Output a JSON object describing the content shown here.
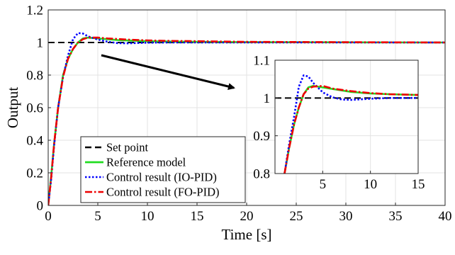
{
  "chart_data": [
    {
      "id": "main",
      "type": "line",
      "xlabel": "Time [s]",
      "ylabel": "Output",
      "xlim": [
        0,
        40
      ],
      "ylim": [
        0,
        1.2
      ],
      "xticks": [
        "0",
        "5",
        "10",
        "15",
        "20",
        "25",
        "30",
        "35",
        "40"
      ],
      "yticks": [
        "0",
        "0.2",
        "0.4",
        "0.6",
        "0.8",
        "1",
        "1.2"
      ],
      "grid": true,
      "legend_position": "bottom-left",
      "series": [
        {
          "name": "Set point",
          "color": "#000000",
          "style": "dashed",
          "points": [
            [
              0,
              1.0
            ],
            [
              40,
              1.0
            ]
          ]
        },
        {
          "name": "Reference model",
          "color": "#22dd22",
          "style": "solid",
          "points": [
            [
              0,
              0
            ],
            [
              0.3,
              0.18
            ],
            [
              0.6,
              0.38
            ],
            [
              1.0,
              0.6
            ],
            [
              1.5,
              0.8
            ],
            [
              2.0,
              0.9
            ],
            [
              2.5,
              0.96
            ],
            [
              3.0,
              1.0
            ],
            [
              3.5,
              1.025
            ],
            [
              4.0,
              1.03
            ],
            [
              5.0,
              1.025
            ],
            [
              7.0,
              1.015
            ],
            [
              10.0,
              1.008
            ],
            [
              15.0,
              1.004
            ],
            [
              20.0,
              1.002
            ],
            [
              40.0,
              1.0
            ]
          ]
        },
        {
          "name": "Control result (IO-PID)",
          "color": "#0000ff",
          "style": "dotted",
          "points": [
            [
              0,
              0
            ],
            [
              0.3,
              0.16
            ],
            [
              0.6,
              0.37
            ],
            [
              1.0,
              0.6
            ],
            [
              1.5,
              0.79
            ],
            [
              2.0,
              0.92
            ],
            [
              2.5,
              1.02
            ],
            [
              3.0,
              1.058
            ],
            [
              3.5,
              1.055
            ],
            [
              4.0,
              1.038
            ],
            [
              5.0,
              1.018
            ],
            [
              6.0,
              1.005
            ],
            [
              7.0,
              0.996
            ],
            [
              8.0,
              0.995
            ],
            [
              9.0,
              0.997
            ],
            [
              10.0,
              0.999
            ],
            [
              12.0,
              1.0
            ],
            [
              15.0,
              1.0
            ],
            [
              40.0,
              1.0
            ]
          ]
        },
        {
          "name": "Control result (FO-PID)",
          "color": "#ee0000",
          "style": "dashdot",
          "points": [
            [
              0,
              0
            ],
            [
              0.3,
              0.17
            ],
            [
              0.6,
              0.38
            ],
            [
              1.0,
              0.6
            ],
            [
              1.5,
              0.79
            ],
            [
              2.0,
              0.9
            ],
            [
              2.5,
              0.96
            ],
            [
              3.0,
              1.0
            ],
            [
              3.5,
              1.02
            ],
            [
              4.0,
              1.03
            ],
            [
              5.0,
              1.03
            ],
            [
              6.0,
              1.025
            ],
            [
              8.0,
              1.018
            ],
            [
              10.0,
              1.013
            ],
            [
              12.0,
              1.01
            ],
            [
              15.0,
              1.008
            ],
            [
              20.0,
              1.004
            ],
            [
              40.0,
              1.0
            ]
          ]
        }
      ]
    },
    {
      "id": "inset",
      "type": "line",
      "xlim": [
        0,
        15
      ],
      "ylim": [
        0.8,
        1.1
      ],
      "xticks": [
        "5",
        "10",
        "15"
      ],
      "yticks": [
        "0.8",
        "0.9",
        "1",
        "1.1"
      ],
      "grid": true,
      "series": [
        {
          "name": "Set point",
          "color": "#000000",
          "style": "dashed",
          "points": [
            [
              0,
              1.0
            ],
            [
              15,
              1.0
            ]
          ]
        },
        {
          "name": "Reference model",
          "color": "#22dd22",
          "style": "solid",
          "points": [
            [
              1.0,
              0.8
            ],
            [
              1.5,
              0.87
            ],
            [
              2.0,
              0.93
            ],
            [
              2.5,
              0.975
            ],
            [
              3.0,
              1.01
            ],
            [
              3.5,
              1.028
            ],
            [
              4.0,
              1.032
            ],
            [
              5.0,
              1.028
            ],
            [
              6.0,
              1.024
            ],
            [
              8.0,
              1.016
            ],
            [
              10.0,
              1.012
            ],
            [
              12.0,
              1.01
            ],
            [
              15.0,
              1.008
            ]
          ]
        },
        {
          "name": "Control result (IO-PID)",
          "color": "#0000ff",
          "style": "dotted",
          "points": [
            [
              1.0,
              0.8
            ],
            [
              1.5,
              0.88
            ],
            [
              2.0,
              0.95
            ],
            [
              2.5,
              1.03
            ],
            [
              3.0,
              1.06
            ],
            [
              3.5,
              1.057
            ],
            [
              4.0,
              1.04
            ],
            [
              5.0,
              1.015
            ],
            [
              6.0,
              1.002
            ],
            [
              7.0,
              0.996
            ],
            [
              8.0,
              0.995
            ],
            [
              10.0,
              0.998
            ],
            [
              12.0,
              1.0
            ],
            [
              15.0,
              1.0
            ]
          ]
        },
        {
          "name": "Control result (FO-PID)",
          "color": "#ee0000",
          "style": "dashdot",
          "points": [
            [
              1.0,
              0.8
            ],
            [
              1.5,
              0.87
            ],
            [
              2.0,
              0.93
            ],
            [
              2.5,
              0.975
            ],
            [
              3.0,
              1.01
            ],
            [
              3.5,
              1.025
            ],
            [
              4.0,
              1.03
            ],
            [
              5.0,
              1.032
            ],
            [
              6.0,
              1.025
            ],
            [
              8.0,
              1.018
            ],
            [
              10.0,
              1.013
            ],
            [
              12.0,
              1.01
            ],
            [
              15.0,
              1.008
            ]
          ]
        }
      ]
    }
  ]
}
